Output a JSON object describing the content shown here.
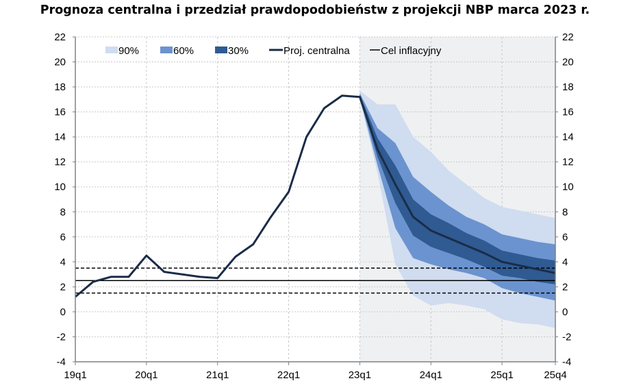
{
  "chart_data": {
    "type": "area",
    "title": "Prognoza centralna i przedział prawdopodobieństw z projekcji NBP marca 2023 r.",
    "xlabel": "",
    "ylabel": "",
    "ylim": [
      -4,
      22
    ],
    "yticks": [
      -4,
      -2,
      0,
      2,
      4,
      6,
      8,
      10,
      12,
      14,
      16,
      18,
      20,
      22
    ],
    "xtick_labels": [
      "19q1",
      "20q1",
      "21q1",
      "22q1",
      "23q1",
      "24q1",
      "25q1",
      "25q4"
    ],
    "quarters": [
      "19q1",
      "19q2",
      "19q3",
      "19q4",
      "20q1",
      "20q2",
      "20q3",
      "20q4",
      "21q1",
      "21q2",
      "21q3",
      "21q4",
      "22q1",
      "22q2",
      "22q3",
      "22q4",
      "23q1",
      "23q2",
      "23q3",
      "23q4",
      "24q1",
      "24q2",
      "24q3",
      "24q4",
      "25q1",
      "25q2",
      "25q3",
      "25q4"
    ],
    "grid": true,
    "projection_shaded_from": "23q1",
    "legend_position": "top",
    "legend": [
      "90%",
      "60%",
      "30%",
      "Proj. centralna",
      "Cel inflacyjny"
    ],
    "central": [
      1.2,
      2.4,
      2.8,
      2.8,
      4.5,
      3.2,
      3.0,
      2.8,
      2.7,
      4.4,
      5.4,
      7.6,
      9.6,
      14.0,
      16.3,
      17.3,
      17.2,
      13.0,
      10.2,
      7.6,
      6.5,
      5.9,
      5.3,
      4.7,
      4.0,
      3.7,
      3.4,
      3.1
    ],
    "bands_start": "23q1",
    "bands": [
      {
        "name": "90%",
        "color": "#d0dcef",
        "upper": [
          17.7,
          16.6,
          16.6,
          14.0,
          12.8,
          11.3,
          10.2,
          9.1,
          8.4,
          8.1,
          7.8,
          7.5
        ],
        "lower": [
          17.0,
          11.1,
          3.8,
          1.3,
          0.5,
          0.7,
          0.5,
          0.2,
          -0.6,
          -0.9,
          -1.0,
          -1.3
        ]
      },
      {
        "name": "60%",
        "color": "#6b93cf",
        "upper": [
          17.5,
          14.7,
          13.5,
          10.8,
          9.6,
          8.5,
          7.6,
          7.0,
          6.2,
          5.9,
          5.6,
          5.4
        ],
        "lower": [
          17.1,
          11.7,
          6.7,
          4.3,
          3.8,
          3.4,
          3.1,
          2.7,
          1.9,
          1.5,
          1.2,
          0.9
        ]
      },
      {
        "name": "30%",
        "color": "#2f5a92",
        "upper": [
          17.4,
          13.9,
          11.7,
          9.0,
          7.8,
          7.1,
          6.3,
          5.7,
          4.9,
          4.6,
          4.3,
          4.1
        ],
        "lower": [
          17.2,
          12.4,
          8.7,
          6.1,
          5.2,
          4.7,
          4.2,
          3.6,
          2.9,
          2.7,
          2.4,
          2.2
        ]
      }
    ],
    "target": {
      "name": "Cel inflacyjny",
      "value": 2.5,
      "tolerance": [
        1.5,
        3.5
      ]
    },
    "colors": {
      "central": "#1a2c47",
      "projection_bg": "#eff0f2",
      "grid": "#c8c8c8",
      "axis": "#808080"
    }
  }
}
